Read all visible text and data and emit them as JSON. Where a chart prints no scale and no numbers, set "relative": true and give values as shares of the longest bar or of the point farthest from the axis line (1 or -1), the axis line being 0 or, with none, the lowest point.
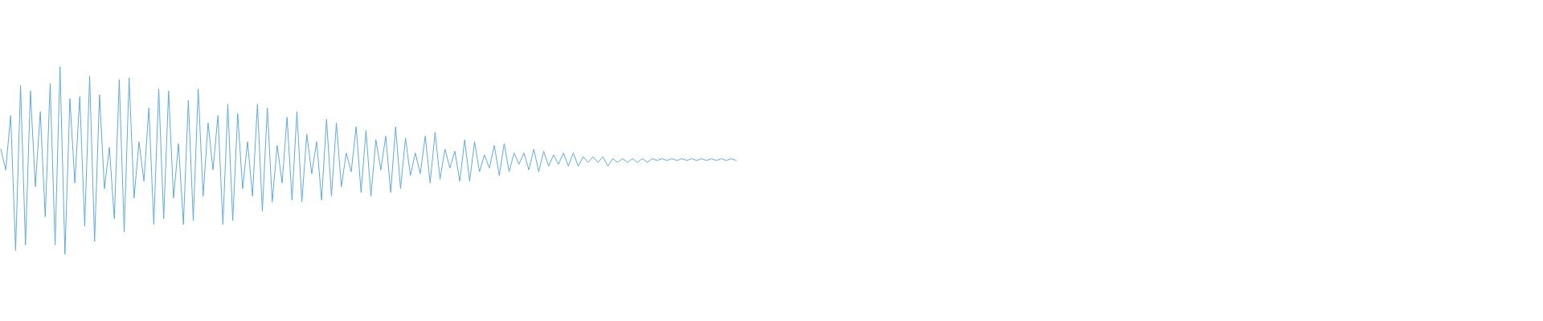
{
  "chart_data": {
    "type": "line",
    "relative": true,
    "color": "#5dabe2",
    "categories": [
      null,
      null,
      null,
      null,
      null,
      null,
      null,
      null,
      null,
      null,
      null,
      null,
      null,
      null,
      null,
      null,
      null,
      null,
      null,
      null,
      null,
      null,
      null,
      null,
      null,
      null,
      null,
      null,
      null,
      null,
      null,
      null,
      null,
      null,
      null,
      null,
      null,
      null,
      null,
      null,
      null,
      null,
      null,
      null,
      null,
      null,
      null,
      null,
      null,
      null,
      null,
      null,
      null,
      null,
      null,
      null,
      null,
      null,
      null,
      null,
      null,
      null,
      null,
      null,
      null,
      null,
      null,
      null,
      null,
      null,
      null,
      null,
      null,
      null,
      null,
      null,
      null,
      null,
      null,
      null,
      null,
      null,
      null,
      null,
      null,
      null,
      null,
      null,
      null,
      null,
      null,
      null,
      null,
      null,
      null,
      null,
      null,
      null,
      null,
      null,
      null,
      null,
      null,
      null,
      null,
      null,
      null,
      null,
      null,
      null,
      null,
      null,
      null,
      null,
      null,
      null,
      null,
      null,
      null,
      null,
      null,
      null,
      null,
      null,
      null,
      null,
      null,
      null,
      null,
      null,
      null,
      null,
      null,
      null,
      null,
      null,
      null,
      null,
      null,
      null,
      null,
      null,
      null,
      null,
      null,
      null,
      null,
      null,
      null,
      null
    ],
    "values": [
      0.56,
      0.45,
      0.74,
      0.02,
      0.9,
      0.05,
      0.87,
      0.36,
      0.76,
      0.2,
      0.91,
      0.05,
      1,
      0,
      0.83,
      0.38,
      0.84,
      0.15,
      0.95,
      0.07,
      0.85,
      0.35,
      0.57,
      0.19,
      0.93,
      0.12,
      0.94,
      0.3,
      0.6,
      0.39,
      0.78,
      0.16,
      0.88,
      0.19,
      0.87,
      0.3,
      0.59,
      0.16,
      0.82,
      0.18,
      0.88,
      0.31,
      0.7,
      0.45,
      0.74,
      0.16,
      0.8,
      0.18,
      0.75,
      0.35,
      0.6,
      0.31,
      0.8,
      0.23,
      0.78,
      0.28,
      0.58,
      0.38,
      0.73,
      0.29,
      0.76,
      0.28,
      0.64,
      0.43,
      0.6,
      0.29,
      0.72,
      0.31,
      0.7,
      0.36,
      0.54,
      0.44,
      0.68,
      0.33,
      0.66,
      0.31,
      0.61,
      0.45,
      0.63,
      0.33,
      0.68,
      0.35,
      0.62,
      0.42,
      0.54,
      0.43,
      0.63,
      0.38,
      0.65,
      0.4,
      0.56,
      0.46,
      0.55,
      0.39,
      0.61,
      0.39,
      0.6,
      0.44,
      0.53,
      0.46,
      0.58,
      0.42,
      0.59,
      0.44,
      0.54,
      0.48,
      0.54,
      0.45,
      0.56,
      0.44,
      0.55,
      0.47,
      0.53,
      0.48,
      0.54,
      0.47,
      0.54,
      0.47,
      0.52,
      0.49,
      0.52,
      0.49,
      0.52,
      0.47,
      0.51,
      0.49,
      0.51,
      0.49,
      0.51,
      0.49,
      0.51,
      0.49,
      0.51,
      0.5,
      0.51,
      0.5,
      0.51,
      0.5,
      0.51,
      0.5,
      0.51,
      0.5,
      0.51,
      0.5,
      0.51,
      0.5,
      0.51,
      0.5,
      0.51,
      0.5
    ]
  }
}
